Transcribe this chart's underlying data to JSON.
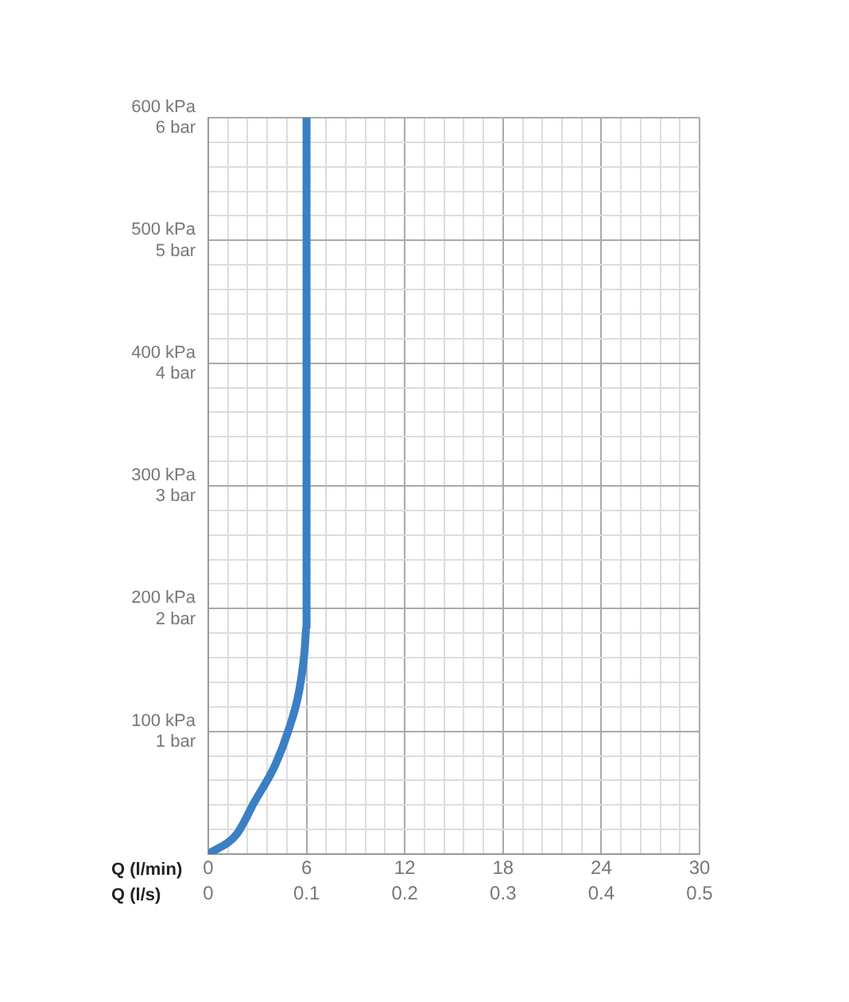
{
  "chart_data": {
    "type": "line",
    "xlabel": "Q (l/min)",
    "x2label": "Q (l/s)",
    "x": [
      0,
      1.72,
      2.8,
      4.1,
      4.9,
      5.55,
      5.87,
      6,
      6,
      6
    ],
    "series": [
      {
        "color": "#3b7fc4",
        "values": [
          0,
          16,
          42,
          73,
          101,
          133,
          164,
          185,
          203,
          600
        ]
      }
    ],
    "xlim": [
      0,
      30
    ],
    "xticks": [
      0,
      {
        "value": 1.2,
        "label": null
      },
      {
        "value": 2.4,
        "label": null
      },
      {
        "value": 3.6,
        "label": null
      },
      {
        "value": 4.8,
        "label": null
      },
      6,
      {
        "value": 7.2,
        "label": null
      },
      {
        "value": 8.4,
        "label": null
      },
      {
        "value": 9.6,
        "label": null
      },
      {
        "value": 10.8,
        "label": null
      },
      12,
      {
        "value": 13.2,
        "label": null
      },
      {
        "value": 14.4,
        "label": null
      },
      {
        "value": 15.6,
        "label": null
      },
      {
        "value": 16.8,
        "label": null
      },
      18,
      {
        "value": 19.2,
        "label": null
      },
      {
        "value": 20.4,
        "label": null
      },
      {
        "value": 21.6,
        "label": null
      },
      {
        "value": 22.8,
        "label": null
      },
      24,
      {
        "value": 25.2,
        "label": null
      },
      {
        "value": 26.4,
        "label": null
      },
      {
        "value": 27.6,
        "label": null
      },
      {
        "value": 28.8,
        "label": null
      },
      30
    ],
    "x2lim": [
      0,
      0.5
    ],
    "x2ticks": [
      0,
      0.1,
      0.2,
      0.3,
      0.4,
      0.5
    ],
    "ylim": [
      0,
      600
    ],
    "yticks": [
      {
        "value": 0,
        "label": null
      },
      {
        "value": 20,
        "label": null
      },
      {
        "value": 40,
        "label": null
      },
      {
        "value": 60,
        "label": null
      },
      {
        "value": 80,
        "label": null
      },
      {
        "value": 100,
        "label": "100 kPa"
      },
      {
        "value": 120,
        "label": null
      },
      {
        "value": 140,
        "label": null
      },
      {
        "value": 160,
        "label": null
      },
      {
        "value": 180,
        "label": null
      },
      {
        "value": 200,
        "label": "200 kPa"
      },
      {
        "value": 220,
        "label": null
      },
      {
        "value": 240,
        "label": null
      },
      {
        "value": 260,
        "label": null
      },
      {
        "value": 280,
        "label": null
      },
      {
        "value": 300,
        "label": "300 kPa"
      },
      {
        "value": 320,
        "label": null
      },
      {
        "value": 340,
        "label": null
      },
      {
        "value": 360,
        "label": null
      },
      {
        "value": 380,
        "label": null
      },
      {
        "value": 400,
        "label": "400 kPa"
      },
      {
        "value": 420,
        "label": null
      },
      {
        "value": 440,
        "label": null
      },
      {
        "value": 460,
        "label": null
      },
      {
        "value": 480,
        "label": null
      },
      {
        "value": 500,
        "label": "500 kPa"
      },
      {
        "value": 520,
        "label": null
      },
      {
        "value": 540,
        "label": null
      },
      {
        "value": 560,
        "label": null
      },
      {
        "value": 580,
        "label": null
      },
      {
        "value": 600,
        "label": "600 kPa"
      }
    ],
    "y2lim": [
      0,
      6
    ],
    "y2ticks": [
      {
        "value": 1,
        "label": "1 bar"
      },
      {
        "value": 2,
        "label": "2 bar"
      },
      {
        "value": 3,
        "label": "3 bar"
      },
      {
        "value": 4,
        "label": "4 bar"
      },
      {
        "value": 5,
        "label": "5 bar"
      },
      {
        "value": 6,
        "label": "6 bar"
      }
    ],
    "grid": true,
    "legend": false,
    "marker": "none",
    "line_style": "solid"
  }
}
